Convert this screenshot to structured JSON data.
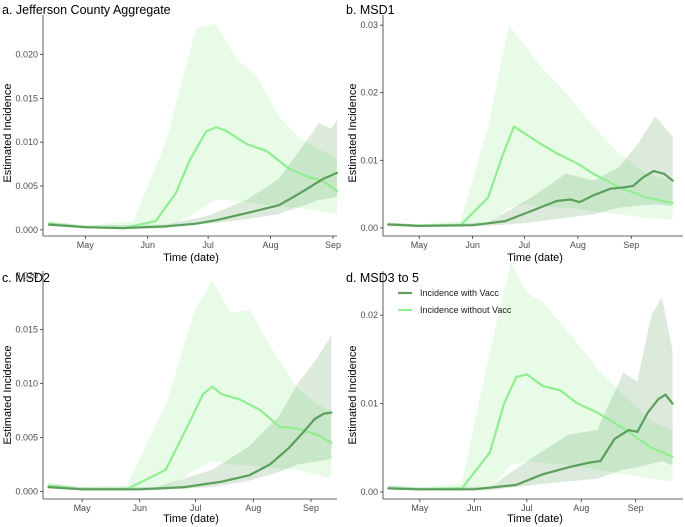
{
  "colors": {
    "with_vacc": "#5c9e5c",
    "without_vacc": "#90ee90",
    "with_vacc_ribbon": "#5c9e5c",
    "without_vacc_ribbon": "#90ee90",
    "axis": "#333333"
  },
  "legend": {
    "with_label": "Incidence with Vacc",
    "without_label": "Incidence without Vacc"
  },
  "chart_data": [
    {
      "type": "line",
      "title": "a. Jefferson County Aggregate",
      "xlabel": "Time (date)",
      "ylabel": "Estimated Incidence",
      "x_ticks": [
        "May",
        "Jun",
        "Jul",
        "Aug",
        "Sep"
      ],
      "y_ticks": [
        "0.000",
        "0.005",
        "0.010",
        "0.015",
        "0.020"
      ],
      "ylim": [
        -0.0007,
        0.0245
      ],
      "xlim": [
        "2021-04-10",
        "2021-09-03"
      ],
      "grid": false,
      "series": [
        {
          "name": "Incidence with Vacc",
          "points": [
            [
              "04-13",
              0.0006
            ],
            [
              "05-01",
              0.0003
            ],
            [
              "05-20",
              0.0002
            ],
            [
              "06-10",
              0.0004
            ],
            [
              "06-25",
              0.0007
            ],
            [
              "07-05",
              0.0011
            ],
            [
              "07-20",
              0.0019
            ],
            [
              "08-05",
              0.0028
            ],
            [
              "08-12",
              0.0037
            ],
            [
              "08-20",
              0.0048
            ],
            [
              "08-27",
              0.0058
            ],
            [
              "09-03",
              0.0065
            ]
          ],
          "ribbon": [
            [
              "04-13",
              0.0005,
              0.0009
            ],
            [
              "05-01",
              0.0002,
              0.0005
            ],
            [
              "06-10",
              0.0003,
              0.0006
            ],
            [
              "07-01",
              0.0007,
              0.0016
            ],
            [
              "07-20",
              0.0012,
              0.0034
            ],
            [
              "08-05",
              0.0018,
              0.0058
            ],
            [
              "08-20",
              0.003,
              0.0105
            ],
            [
              "08-25",
              0.0034,
              0.0122
            ],
            [
              "08-31",
              0.0036,
              0.0115
            ],
            [
              "09-03",
              0.0038,
              0.0125
            ]
          ]
        },
        {
          "name": "Incidence without Vacc",
          "points": [
            [
              "04-13",
              0.0007
            ],
            [
              "05-01",
              0.0003
            ],
            [
              "05-20",
              0.0002
            ],
            [
              "06-05",
              0.001
            ],
            [
              "06-15",
              0.0042
            ],
            [
              "06-22",
              0.008
            ],
            [
              "06-30",
              0.0112
            ],
            [
              "07-05",
              0.0117
            ],
            [
              "07-10",
              0.0113
            ],
            [
              "07-20",
              0.0098
            ],
            [
              "07-30",
              0.009
            ],
            [
              "08-10",
              0.007
            ],
            [
              "08-20",
              0.006
            ],
            [
              "08-27",
              0.0056
            ],
            [
              "09-03",
              0.0044
            ]
          ],
          "ribbon": [
            [
              "04-13",
              0.0005,
              0.001
            ],
            [
              "05-01",
              0.0002,
              0.0005
            ],
            [
              "05-25",
              0.0001,
              0.001
            ],
            [
              "06-10",
              0.0001,
              0.01
            ],
            [
              "06-25",
              0.002,
              0.023
            ],
            [
              "07-05",
              0.0035,
              0.0235
            ],
            [
              "07-15",
              0.0033,
              0.0195
            ],
            [
              "07-25",
              0.003,
              0.0175
            ],
            [
              "08-05",
              0.0027,
              0.013
            ],
            [
              "08-15",
              0.0025,
              0.0105
            ],
            [
              "08-25",
              0.0022,
              0.0092
            ],
            [
              "09-03",
              0.0018,
              0.0082
            ]
          ]
        }
      ]
    },
    {
      "type": "line",
      "title": "b. MSD1",
      "xlabel": "Time (date)",
      "ylabel": "Estimated Incidence",
      "x_ticks": [
        "May",
        "Jun",
        "Jul",
        "Aug",
        "Sep"
      ],
      "y_ticks": [
        "0.00",
        "0.01",
        "0.02",
        "0.03"
      ],
      "ylim": [
        -0.0012,
        0.0315
      ],
      "xlim": [
        "2021-04-10",
        "2021-09-03"
      ],
      "grid": false,
      "series": [
        {
          "name": "Incidence with Vacc",
          "points": [
            [
              "04-13",
              0.0005
            ],
            [
              "05-01",
              0.0003
            ],
            [
              "06-01",
              0.0004
            ],
            [
              "06-20",
              0.001
            ],
            [
              "07-05",
              0.0025
            ],
            [
              "07-20",
              0.004
            ],
            [
              "07-28",
              0.0042
            ],
            [
              "08-02",
              0.0038
            ],
            [
              "08-10",
              0.0048
            ],
            [
              "08-20",
              0.0058
            ],
            [
              "08-28",
              0.006
            ],
            [
              "09-02",
              0.0062
            ],
            [
              "09-08",
              0.0075
            ],
            [
              "09-14",
              0.0084
            ],
            [
              "09-20",
              0.008
            ],
            [
              "09-25",
              0.007
            ]
          ],
          "ribbon": [
            [
              "04-13",
              0.0004,
              0.0008
            ],
            [
              "05-01",
              0.0002,
              0.0005
            ],
            [
              "06-10",
              0.0003,
              0.0008
            ],
            [
              "07-05",
              0.0008,
              0.0045
            ],
            [
              "07-25",
              0.0015,
              0.008
            ],
            [
              "08-10",
              0.002,
              0.007
            ],
            [
              "08-25",
              0.003,
              0.009
            ],
            [
              "09-05",
              0.0033,
              0.0125
            ],
            [
              "09-15",
              0.0035,
              0.0165
            ],
            [
              "09-25",
              0.0032,
              0.0135
            ]
          ]
        },
        {
          "name": "Incidence without Vacc",
          "points": [
            [
              "04-13",
              0.0005
            ],
            [
              "05-01",
              0.0003
            ],
            [
              "05-25",
              0.0004
            ],
            [
              "06-10",
              0.0045
            ],
            [
              "06-18",
              0.0105
            ],
            [
              "06-25",
              0.015
            ],
            [
              "07-01",
              0.014
            ],
            [
              "07-10",
              0.0125
            ],
            [
              "07-20",
              0.011
            ],
            [
              "08-01",
              0.0095
            ],
            [
              "08-10",
              0.008
            ],
            [
              "08-25",
              0.006
            ],
            [
              "09-10",
              0.0045
            ],
            [
              "09-25",
              0.0037
            ]
          ],
          "ribbon": [
            [
              "04-13",
              0.0003,
              0.0008
            ],
            [
              "05-01",
              0.0002,
              0.0005
            ],
            [
              "05-25",
              0.0001,
              0.001
            ],
            [
              "06-10",
              0.0005,
              0.015
            ],
            [
              "06-22",
              0.003,
              0.03
            ],
            [
              "07-01",
              0.0035,
              0.027
            ],
            [
              "07-10",
              0.0032,
              0.024
            ],
            [
              "07-25",
              0.003,
              0.02
            ],
            [
              "08-10",
              0.0025,
              0.015
            ],
            [
              "08-25",
              0.002,
              0.011
            ],
            [
              "09-10",
              0.0015,
              0.008
            ],
            [
              "09-25",
              0.0012,
              0.007
            ]
          ]
        }
      ]
    },
    {
      "type": "line",
      "title": "c. MSD2",
      "xlabel": "Time (date)",
      "ylabel": "Estimated Incidence",
      "x_ticks": [
        "May",
        "Jun",
        "Jul",
        "Aug",
        "Sep"
      ],
      "y_ticks": [
        "0.000",
        "0.005",
        "0.010",
        "0.015",
        "0.020"
      ],
      "ylim": [
        -0.0007,
        0.0204
      ],
      "xlim": [
        "2021-04-10",
        "2021-09-03"
      ],
      "grid": false,
      "series": [
        {
          "name": "Incidence with Vacc",
          "points": [
            [
              "04-13",
              0.0004
            ],
            [
              "05-01",
              0.0002
            ],
            [
              "06-01",
              0.0002
            ],
            [
              "06-25",
              0.0004
            ],
            [
              "07-15",
              0.0009
            ],
            [
              "07-30",
              0.0015
            ],
            [
              "08-10",
              0.0025
            ],
            [
              "08-20",
              0.004
            ],
            [
              "08-28",
              0.0055
            ],
            [
              "09-03",
              0.0067
            ],
            [
              "09-08",
              0.0072
            ],
            [
              "09-12",
              0.0073
            ]
          ],
          "ribbon": [
            [
              "04-13",
              0.0003,
              0.0007
            ],
            [
              "05-01",
              0.0001,
              0.0004
            ],
            [
              "06-10",
              0.0001,
              0.0004
            ],
            [
              "07-10",
              0.0004,
              0.002
            ],
            [
              "07-30",
              0.001,
              0.0042
            ],
            [
              "08-15",
              0.0018,
              0.007
            ],
            [
              "08-25",
              0.0025,
              0.01
            ],
            [
              "09-05",
              0.0028,
              0.0125
            ],
            [
              "09-12",
              0.003,
              0.0145
            ]
          ]
        },
        {
          "name": "Incidence without Vacc",
          "points": [
            [
              "04-13",
              0.0005
            ],
            [
              "05-01",
              0.0002
            ],
            [
              "05-25",
              0.0002
            ],
            [
              "06-15",
              0.002
            ],
            [
              "06-28",
              0.0065
            ],
            [
              "07-05",
              0.009
            ],
            [
              "07-10",
              0.0097
            ],
            [
              "07-15",
              0.009
            ],
            [
              "07-25",
              0.0085
            ],
            [
              "08-05",
              0.0075
            ],
            [
              "08-15",
              0.006
            ],
            [
              "08-25",
              0.0058
            ],
            [
              "09-05",
              0.0052
            ],
            [
              "09-12",
              0.0045
            ]
          ],
          "ribbon": [
            [
              "04-13",
              0.0003,
              0.0008
            ],
            [
              "05-01",
              0.0001,
              0.0004
            ],
            [
              "05-25",
              0.0001,
              0.0006
            ],
            [
              "06-15",
              0.0003,
              0.008
            ],
            [
              "07-01",
              0.002,
              0.017
            ],
            [
              "07-10",
              0.0028,
              0.0195
            ],
            [
              "07-20",
              0.0025,
              0.0165
            ],
            [
              "07-30",
              0.0024,
              0.0168
            ],
            [
              "08-10",
              0.0022,
              0.0135
            ],
            [
              "08-25",
              0.002,
              0.0095
            ],
            [
              "09-05",
              0.0015,
              0.008
            ],
            [
              "09-12",
              0.0012,
              0.0075
            ]
          ]
        }
      ]
    },
    {
      "type": "line",
      "title": "d. MSD3 to 5",
      "xlabel": "Time (date)",
      "ylabel": "Estimated Incidence",
      "x_ticks": [
        "May",
        "Jun",
        "Jul",
        "Aug",
        "Sep"
      ],
      "y_ticks": [
        "0.00",
        "0.01",
        "0.02"
      ],
      "ylim": [
        -0.0008,
        0.025
      ],
      "xlim": [
        "2021-04-10",
        "2021-09-03"
      ],
      "grid": false,
      "legend_position": "top-left",
      "series": [
        {
          "name": "Incidence with Vacc",
          "points": [
            [
              "04-13",
              0.0004
            ],
            [
              "05-01",
              0.0003
            ],
            [
              "06-01",
              0.0003
            ],
            [
              "06-25",
              0.0008
            ],
            [
              "07-10",
              0.002
            ],
            [
              "07-25",
              0.0028
            ],
            [
              "08-05",
              0.0033
            ],
            [
              "08-12",
              0.0035
            ],
            [
              "08-20",
              0.006
            ],
            [
              "08-28",
              0.007
            ],
            [
              "09-02",
              0.0068
            ],
            [
              "09-08",
              0.009
            ],
            [
              "09-14",
              0.0105
            ],
            [
              "09-18",
              0.011
            ],
            [
              "09-22",
              0.01
            ]
          ],
          "ribbon": [
            [
              "04-13",
              0.0003,
              0.0007
            ],
            [
              "05-01",
              0.0002,
              0.0005
            ],
            [
              "06-10",
              0.0002,
              0.0006
            ],
            [
              "07-05",
              0.0008,
              0.004
            ],
            [
              "07-25",
              0.0012,
              0.0065
            ],
            [
              "08-10",
              0.0015,
              0.007
            ],
            [
              "08-25",
              0.0025,
              0.0135
            ],
            [
              "09-02",
              0.0028,
              0.0125
            ],
            [
              "09-10",
              0.0032,
              0.02
            ],
            [
              "09-16",
              0.0035,
              0.022
            ],
            [
              "09-22",
              0.003,
              0.016
            ]
          ]
        },
        {
          "name": "Incidence without Vacc",
          "points": [
            [
              "04-13",
              0.0004
            ],
            [
              "05-01",
              0.0003
            ],
            [
              "05-25",
              0.0004
            ],
            [
              "06-10",
              0.0045
            ],
            [
              "06-18",
              0.01
            ],
            [
              "06-25",
              0.013
            ],
            [
              "07-01",
              0.0133
            ],
            [
              "07-10",
              0.012
            ],
            [
              "07-20",
              0.0115
            ],
            [
              "07-30",
              0.01
            ],
            [
              "08-10",
              0.009
            ],
            [
              "08-25",
              0.0072
            ],
            [
              "09-10",
              0.005
            ],
            [
              "09-22",
              0.004
            ]
          ],
          "ribbon": [
            [
              "04-13",
              0.0003,
              0.0008
            ],
            [
              "05-01",
              0.0002,
              0.0005
            ],
            [
              "05-25",
              0.0001,
              0.001
            ],
            [
              "06-10",
              0.0005,
              0.016
            ],
            [
              "06-22",
              0.003,
              0.026
            ],
            [
              "07-01",
              0.0035,
              0.0225
            ],
            [
              "07-10",
              0.0033,
              0.0215
            ],
            [
              "07-25",
              0.003,
              0.018
            ],
            [
              "08-10",
              0.0025,
              0.014
            ],
            [
              "08-25",
              0.002,
              0.011
            ],
            [
              "09-10",
              0.0015,
              0.008
            ],
            [
              "09-22",
              0.0012,
              0.007
            ]
          ]
        }
      ]
    }
  ]
}
